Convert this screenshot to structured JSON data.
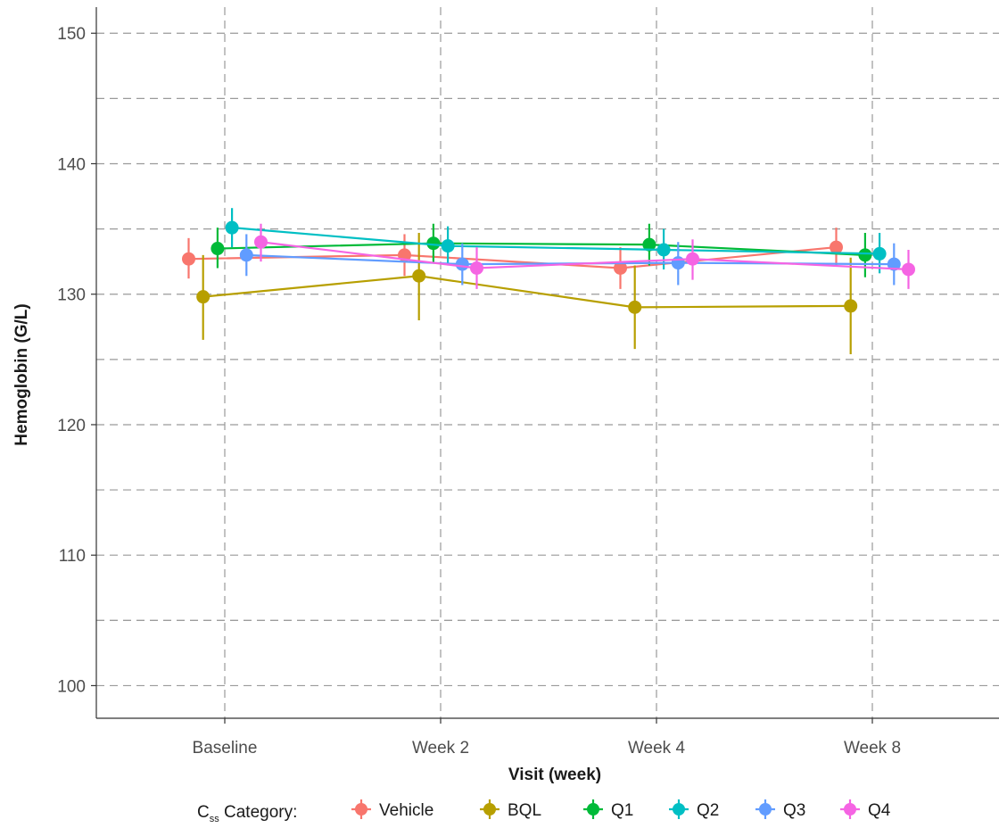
{
  "chart_data": {
    "type": "line",
    "xlabel": "Visit (week)",
    "ylabel": "Hemoglobin (G/L)",
    "ylim": [
      97.5,
      152
    ],
    "yticks": [
      100,
      110,
      120,
      130,
      140,
      150
    ],
    "categories": [
      "Baseline",
      "Week 2",
      "Week 4",
      "Week 8"
    ],
    "grid": true,
    "error_bars": true,
    "legend": {
      "position": "bottom",
      "title_main": "C",
      "title_sub": "ss",
      "title_rest": " Category:"
    },
    "series": [
      {
        "name": "Vehicle",
        "color": "#F8766D",
        "values": [
          132.7,
          133.0,
          132.0,
          133.6
        ],
        "lower": [
          131.2,
          131.4,
          130.4,
          132.2
        ],
        "upper": [
          134.3,
          134.6,
          133.6,
          135.1
        ]
      },
      {
        "name": "BQL",
        "color": "#B79F00",
        "values": [
          129.8,
          131.4,
          129.0,
          129.1
        ],
        "lower": [
          126.5,
          128.0,
          125.8,
          125.4
        ],
        "upper": [
          133.0,
          134.7,
          132.2,
          132.8
        ]
      },
      {
        "name": "Q1",
        "color": "#00BA38",
        "values": [
          133.5,
          133.9,
          133.8,
          133.0
        ],
        "lower": [
          132.0,
          132.4,
          132.2,
          131.3
        ],
        "upper": [
          135.1,
          135.4,
          135.4,
          134.7
        ]
      },
      {
        "name": "Q2",
        "color": "#00BFC4",
        "values": [
          135.1,
          133.7,
          133.4,
          133.1
        ],
        "lower": [
          133.6,
          132.2,
          131.9,
          131.6
        ],
        "upper": [
          136.6,
          135.2,
          135.0,
          134.7
        ]
      },
      {
        "name": "Q3",
        "color": "#619CFF",
        "values": [
          133.0,
          132.3,
          132.4,
          132.3
        ],
        "lower": [
          131.4,
          130.7,
          130.7,
          130.7
        ],
        "upper": [
          134.6,
          133.9,
          134.0,
          133.9
        ]
      },
      {
        "name": "Q4",
        "color": "#F564E3",
        "values": [
          134.0,
          132.0,
          132.7,
          131.9
        ],
        "lower": [
          132.5,
          130.4,
          131.1,
          130.4
        ],
        "upper": [
          135.4,
          133.6,
          134.2,
          133.4
        ]
      }
    ]
  }
}
